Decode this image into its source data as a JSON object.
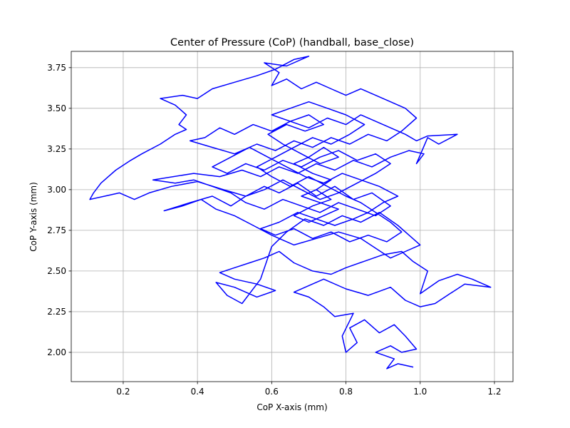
{
  "chart_data": {
    "type": "line",
    "title": "Center of Pressure (CoP) (handball, base_close)",
    "xlabel": "CoP X-axis (mm)",
    "ylabel": "CoP Y-axis (mm)",
    "xlim": [
      0.06,
      1.25
    ],
    "ylim": [
      1.82,
      3.85
    ],
    "xticks": [
      0.2,
      0.4,
      0.6,
      0.8,
      1.0,
      1.2
    ],
    "xtick_labels": [
      "0.2",
      "0.4",
      "0.6",
      "0.8",
      "1.0",
      "1.2"
    ],
    "yticks": [
      2.0,
      2.25,
      2.5,
      2.75,
      3.0,
      3.25,
      3.5,
      3.75
    ],
    "ytick_labels": [
      "2.00",
      "2.25",
      "2.50",
      "2.75",
      "3.00",
      "3.25",
      "3.50",
      "3.75"
    ],
    "grid": true,
    "series": [
      {
        "color": "#0000ff",
        "points": [
          [
            0.98,
            1.91
          ],
          [
            0.94,
            1.93
          ],
          [
            0.91,
            1.9
          ],
          [
            0.93,
            1.96
          ],
          [
            0.88,
            2.0
          ],
          [
            0.92,
            2.04
          ],
          [
            0.95,
            2.0
          ],
          [
            0.99,
            2.02
          ],
          [
            0.96,
            2.1
          ],
          [
            0.93,
            2.17
          ],
          [
            0.89,
            2.12
          ],
          [
            0.85,
            2.2
          ],
          [
            0.81,
            2.15
          ],
          [
            0.83,
            2.06
          ],
          [
            0.8,
            2.0
          ],
          [
            0.79,
            2.1
          ],
          [
            0.82,
            2.24
          ],
          [
            0.77,
            2.22
          ],
          [
            0.74,
            2.28
          ],
          [
            0.7,
            2.34
          ],
          [
            0.66,
            2.37
          ],
          [
            0.7,
            2.41
          ],
          [
            0.74,
            2.45
          ],
          [
            0.8,
            2.39
          ],
          [
            0.86,
            2.35
          ],
          [
            0.92,
            2.4
          ],
          [
            0.96,
            2.32
          ],
          [
            1.0,
            2.28
          ],
          [
            1.04,
            2.3
          ],
          [
            1.08,
            2.36
          ],
          [
            1.12,
            2.42
          ],
          [
            1.19,
            2.4
          ],
          [
            1.14,
            2.45
          ],
          [
            1.1,
            2.48
          ],
          [
            1.05,
            2.44
          ],
          [
            1.0,
            2.36
          ],
          [
            1.02,
            2.5
          ],
          [
            0.98,
            2.56
          ],
          [
            0.95,
            2.62
          ],
          [
            0.9,
            2.6
          ],
          [
            0.85,
            2.56
          ],
          [
            0.8,
            2.52
          ],
          [
            0.76,
            2.48
          ],
          [
            0.71,
            2.5
          ],
          [
            0.66,
            2.55
          ],
          [
            0.62,
            2.62
          ],
          [
            0.58,
            2.58
          ],
          [
            0.54,
            2.55
          ],
          [
            0.5,
            2.52
          ],
          [
            0.46,
            2.49
          ],
          [
            0.5,
            2.45
          ],
          [
            0.56,
            2.42
          ],
          [
            0.61,
            2.38
          ],
          [
            0.56,
            2.34
          ],
          [
            0.5,
            2.4
          ],
          [
            0.45,
            2.43
          ],
          [
            0.48,
            2.35
          ],
          [
            0.52,
            2.3
          ],
          [
            0.57,
            2.45
          ],
          [
            0.6,
            2.65
          ],
          [
            0.64,
            2.74
          ],
          [
            0.69,
            2.82
          ],
          [
            0.74,
            2.78
          ],
          [
            0.79,
            2.84
          ],
          [
            0.84,
            2.8
          ],
          [
            0.89,
            2.86
          ],
          [
            0.94,
            2.78
          ],
          [
            0.97,
            2.72
          ],
          [
            1.0,
            2.66
          ],
          [
            0.96,
            2.62
          ],
          [
            0.92,
            2.58
          ],
          [
            0.88,
            2.64
          ],
          [
            0.84,
            2.7
          ],
          [
            0.78,
            2.74
          ],
          [
            0.72,
            2.7
          ],
          [
            0.66,
            2.66
          ],
          [
            0.6,
            2.72
          ],
          [
            0.55,
            2.78
          ],
          [
            0.5,
            2.84
          ],
          [
            0.45,
            2.88
          ],
          [
            0.41,
            2.94
          ],
          [
            0.36,
            2.9
          ],
          [
            0.31,
            2.87
          ],
          [
            0.38,
            2.92
          ],
          [
            0.44,
            2.96
          ],
          [
            0.49,
            2.9
          ],
          [
            0.53,
            2.96
          ],
          [
            0.58,
            3.02
          ],
          [
            0.62,
            2.98
          ],
          [
            0.67,
            3.04
          ],
          [
            0.72,
            2.96
          ],
          [
            0.77,
            3.02
          ],
          [
            0.82,
            2.94
          ],
          [
            0.87,
            2.98
          ],
          [
            0.92,
            2.9
          ],
          [
            0.88,
            2.84
          ],
          [
            0.83,
            2.88
          ],
          [
            0.78,
            2.92
          ],
          [
            0.73,
            2.86
          ],
          [
            0.68,
            2.9
          ],
          [
            0.63,
            2.94
          ],
          [
            0.58,
            2.88
          ],
          [
            0.53,
            2.92
          ],
          [
            0.49,
            2.98
          ],
          [
            0.44,
            3.02
          ],
          [
            0.39,
            3.06
          ],
          [
            0.34,
            3.04
          ],
          [
            0.28,
            3.06
          ],
          [
            0.39,
            3.1
          ],
          [
            0.46,
            3.08
          ],
          [
            0.52,
            3.12
          ],
          [
            0.57,
            3.08
          ],
          [
            0.62,
            3.14
          ],
          [
            0.67,
            3.1
          ],
          [
            0.72,
            3.16
          ],
          [
            0.77,
            3.12
          ],
          [
            0.82,
            3.18
          ],
          [
            0.87,
            3.14
          ],
          [
            0.92,
            3.2
          ],
          [
            0.97,
            3.24
          ],
          [
            1.01,
            3.22
          ],
          [
            0.99,
            3.16
          ],
          [
            1.02,
            3.32
          ],
          [
            1.05,
            3.28
          ],
          [
            1.1,
            3.34
          ],
          [
            1.02,
            3.33
          ],
          [
            0.99,
            3.3
          ],
          [
            0.96,
            3.34
          ],
          [
            0.92,
            3.38
          ],
          [
            0.88,
            3.42
          ],
          [
            0.84,
            3.46
          ],
          [
            0.8,
            3.4
          ],
          [
            0.75,
            3.44
          ],
          [
            0.7,
            3.38
          ],
          [
            0.65,
            3.42
          ],
          [
            0.6,
            3.36
          ],
          [
            0.55,
            3.4
          ],
          [
            0.5,
            3.34
          ],
          [
            0.46,
            3.38
          ],
          [
            0.42,
            3.32
          ],
          [
            0.38,
            3.3
          ],
          [
            0.44,
            3.26
          ],
          [
            0.5,
            3.22
          ],
          [
            0.56,
            3.28
          ],
          [
            0.61,
            3.24
          ],
          [
            0.66,
            3.3
          ],
          [
            0.71,
            3.26
          ],
          [
            0.76,
            3.32
          ],
          [
            0.81,
            3.28
          ],
          [
            0.86,
            3.34
          ],
          [
            0.91,
            3.3
          ],
          [
            0.95,
            3.36
          ],
          [
            0.99,
            3.44
          ],
          [
            0.96,
            3.5
          ],
          [
            0.92,
            3.54
          ],
          [
            0.88,
            3.58
          ],
          [
            0.84,
            3.62
          ],
          [
            0.8,
            3.58
          ],
          [
            0.76,
            3.62
          ],
          [
            0.72,
            3.66
          ],
          [
            0.68,
            3.62
          ],
          [
            0.64,
            3.68
          ],
          [
            0.6,
            3.64
          ],
          [
            0.62,
            3.72
          ],
          [
            0.58,
            3.78
          ],
          [
            0.64,
            3.76
          ],
          [
            0.7,
            3.82
          ],
          [
            0.66,
            3.8
          ],
          [
            0.61,
            3.74
          ],
          [
            0.56,
            3.7
          ],
          [
            0.5,
            3.66
          ],
          [
            0.44,
            3.62
          ],
          [
            0.4,
            3.56
          ],
          [
            0.36,
            3.58
          ],
          [
            0.3,
            3.56
          ],
          [
            0.34,
            3.52
          ],
          [
            0.37,
            3.46
          ],
          [
            0.35,
            3.4
          ],
          [
            0.37,
            3.37
          ],
          [
            0.34,
            3.34
          ],
          [
            0.3,
            3.28
          ],
          [
            0.25,
            3.22
          ],
          [
            0.22,
            3.18
          ],
          [
            0.18,
            3.12
          ],
          [
            0.16,
            3.08
          ],
          [
            0.14,
            3.04
          ],
          [
            0.12,
            2.98
          ],
          [
            0.11,
            2.94
          ],
          [
            0.15,
            2.96
          ],
          [
            0.19,
            2.98
          ],
          [
            0.23,
            2.94
          ],
          [
            0.27,
            2.98
          ],
          [
            0.33,
            3.02
          ],
          [
            0.4,
            3.05
          ],
          [
            0.47,
            3.0
          ],
          [
            0.53,
            2.96
          ],
          [
            0.58,
            3.0
          ],
          [
            0.63,
            3.06
          ],
          [
            0.68,
            3.0
          ],
          [
            0.73,
            2.94
          ],
          [
            0.78,
            2.98
          ],
          [
            0.83,
            3.04
          ],
          [
            0.88,
            3.1
          ],
          [
            0.92,
            3.16
          ],
          [
            0.88,
            3.22
          ],
          [
            0.83,
            3.18
          ],
          [
            0.78,
            3.24
          ],
          [
            0.73,
            3.2
          ],
          [
            0.68,
            3.14
          ],
          [
            0.63,
            3.18
          ],
          [
            0.58,
            3.12
          ],
          [
            0.53,
            3.16
          ],
          [
            0.48,
            3.1
          ],
          [
            0.44,
            3.14
          ],
          [
            0.49,
            3.2
          ],
          [
            0.54,
            3.26
          ],
          [
            0.59,
            3.2
          ],
          [
            0.64,
            3.14
          ],
          [
            0.69,
            3.08
          ],
          [
            0.74,
            3.04
          ],
          [
            0.79,
            3.1
          ],
          [
            0.84,
            3.06
          ],
          [
            0.89,
            3.02
          ],
          [
            0.94,
            2.96
          ],
          [
            0.9,
            2.92
          ],
          [
            0.86,
            2.86
          ],
          [
            0.82,
            2.82
          ],
          [
            0.77,
            2.78
          ],
          [
            0.72,
            2.82
          ],
          [
            0.67,
            2.86
          ],
          [
            0.62,
            2.8
          ],
          [
            0.57,
            2.76
          ],
          [
            0.61,
            2.72
          ],
          [
            0.66,
            2.76
          ],
          [
            0.71,
            2.7
          ],
          [
            0.76,
            2.74
          ],
          [
            0.81,
            2.68
          ],
          [
            0.86,
            2.72
          ],
          [
            0.91,
            2.68
          ],
          [
            0.95,
            2.74
          ],
          [
            0.92,
            2.8
          ],
          [
            0.88,
            2.86
          ],
          [
            0.84,
            2.92
          ],
          [
            0.8,
            2.96
          ],
          [
            0.75,
            3.02
          ],
          [
            0.7,
            3.08
          ],
          [
            0.65,
            3.02
          ],
          [
            0.6,
            3.08
          ],
          [
            0.56,
            3.14
          ],
          [
            0.61,
            3.2
          ],
          [
            0.66,
            3.26
          ],
          [
            0.71,
            3.32
          ],
          [
            0.76,
            3.28
          ],
          [
            0.81,
            3.34
          ],
          [
            0.85,
            3.4
          ],
          [
            0.8,
            3.46
          ],
          [
            0.75,
            3.5
          ],
          [
            0.7,
            3.54
          ],
          [
            0.65,
            3.5
          ],
          [
            0.6,
            3.46
          ],
          [
            0.65,
            3.42
          ],
          [
            0.7,
            3.46
          ],
          [
            0.74,
            3.4
          ],
          [
            0.69,
            3.36
          ],
          [
            0.64,
            3.4
          ],
          [
            0.59,
            3.34
          ],
          [
            0.63,
            3.28
          ],
          [
            0.68,
            3.22
          ],
          [
            0.73,
            3.16
          ],
          [
            0.78,
            3.2
          ],
          [
            0.74,
            3.26
          ],
          [
            0.7,
            3.2
          ],
          [
            0.66,
            3.16
          ],
          [
            0.71,
            3.1
          ],
          [
            0.76,
            3.06
          ],
          [
            0.72,
            3.0
          ],
          [
            0.68,
            2.96
          ],
          [
            0.73,
            2.92
          ],
          [
            0.78,
            2.88
          ],
          [
            0.74,
            2.84
          ],
          [
            0.7,
            2.8
          ],
          [
            0.66,
            2.84
          ],
          [
            0.71,
            2.9
          ],
          [
            0.76,
            2.94
          ],
          [
            0.72,
            3.0
          ]
        ]
      }
    ]
  }
}
